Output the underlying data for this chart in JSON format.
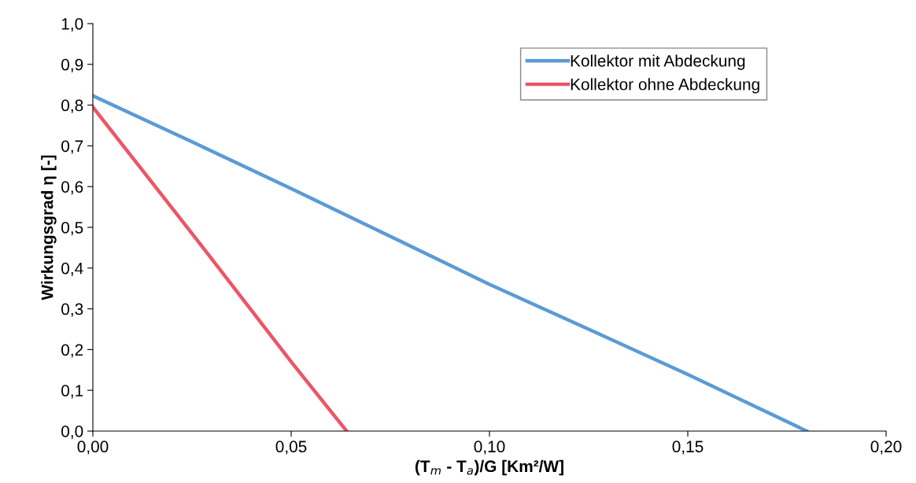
{
  "chart_data": {
    "type": "line",
    "xlabel": "(T$_{m}$ - T$_{a}$)/G [Km²/W]",
    "ylabel": "Wirkungsgrad η [-]",
    "series": [
      {
        "name": "Kollektor mit Abdeckung",
        "color": "#5b9bd5",
        "x": [
          0,
          0.025,
          0.05,
          0.075,
          0.1,
          0.125,
          0.15,
          0.18
        ],
        "values": [
          0.823,
          0.71,
          0.595,
          0.478,
          0.36,
          0.25,
          0.139,
          0
        ]
      },
      {
        "name": "Kollektor ohne Abdeckung",
        "color": "#ed5565",
        "x": [
          0,
          0.025,
          0.05,
          0.064
        ],
        "values": [
          0.795,
          0.485,
          0.17,
          0
        ]
      }
    ],
    "xlim": [
      0,
      0.2
    ],
    "ylim": [
      0,
      1.0
    ],
    "xticks": [
      {
        "value": 0,
        "label": "0,00"
      },
      {
        "value": 0.05,
        "label": "0,05"
      },
      {
        "value": 0.1,
        "label": "0,10"
      },
      {
        "value": 0.15,
        "label": "0,15"
      },
      {
        "value": 0.2,
        "label": "0,20"
      }
    ],
    "yticks": [
      {
        "value": 0,
        "label": "0,0"
      },
      {
        "value": 0.1,
        "label": "0,1"
      },
      {
        "value": 0.2,
        "label": "0,2"
      },
      {
        "value": 0.3,
        "label": "0,3"
      },
      {
        "value": 0.4,
        "label": "0,4"
      },
      {
        "value": 0.5,
        "label": "0,5"
      },
      {
        "value": 0.6,
        "label": "0,6"
      },
      {
        "value": 0.7,
        "label": "0,7"
      },
      {
        "value": 0.8,
        "label": "0,8"
      },
      {
        "value": 0.9,
        "label": "0,9"
      },
      {
        "value": 1.0,
        "label": "1,0"
      }
    ],
    "grid": false,
    "legend": "top right",
    "marker": "none",
    "line_style": "solid"
  }
}
